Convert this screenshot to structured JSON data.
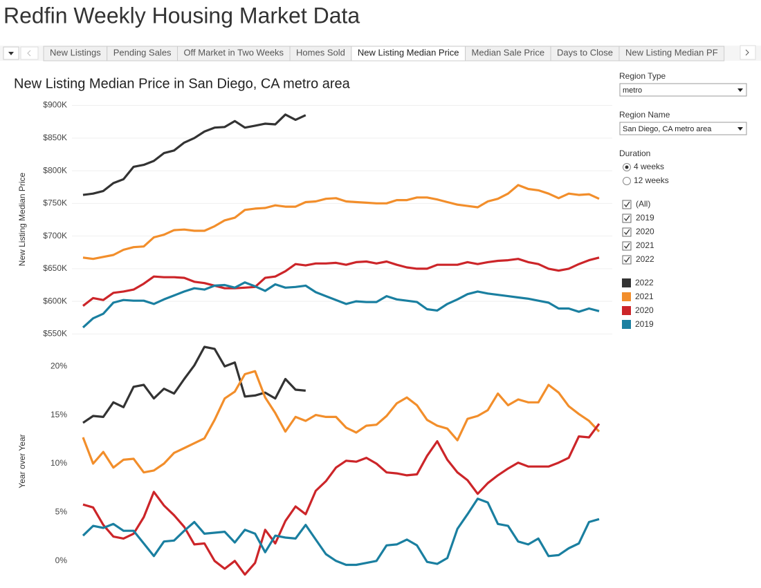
{
  "header": {
    "title": "Redfin Weekly Housing Market Data"
  },
  "tabs": {
    "items": [
      "New Listings",
      "Pending Sales",
      "Off Market in Two Weeks",
      "Homes Sold",
      "New Listing Median Price",
      "Median Sale Price",
      "Days to Close",
      "New Listing Median PF"
    ],
    "selected": 4
  },
  "controls": {
    "region_type": {
      "label": "Region Type",
      "value": "metro"
    },
    "region_name": {
      "label": "Region Name",
      "value": "San Diego, CA metro area"
    },
    "duration": {
      "label": "Duration",
      "options": [
        "4 weeks",
        "12 weeks"
      ],
      "selected": 0
    },
    "years": [
      {
        "label": "(All)",
        "checked": true
      },
      {
        "label": "2019",
        "checked": true
      },
      {
        "label": "2020",
        "checked": true
      },
      {
        "label": "2021",
        "checked": true
      },
      {
        "label": "2022",
        "checked": true
      }
    ]
  },
  "chart_data": [
    {
      "type": "line",
      "title": "New Listing Median Price in San Diego, CA metro area",
      "y_label": "New Listing Median Price",
      "grid": true,
      "categories": [
        null,
        null,
        null,
        null,
        null,
        null,
        null,
        null,
        null,
        null,
        null,
        null,
        null,
        null,
        null,
        null,
        null,
        null,
        null,
        null,
        null,
        null,
        null,
        null,
        null,
        null,
        null,
        null,
        null,
        null,
        null,
        null,
        null,
        null,
        null,
        null,
        null,
        null,
        null,
        null,
        null,
        null,
        null,
        null,
        null,
        null,
        null,
        null,
        null,
        null,
        null,
        null
      ],
      "ylim": [
        543,
        908
      ],
      "yticks": [
        {
          "value": 550,
          "label": "$550K"
        },
        {
          "value": 600,
          "label": "$600K"
        },
        {
          "value": 650,
          "label": "$650K"
        },
        {
          "value": 700,
          "label": "$700K"
        },
        {
          "value": 750,
          "label": "$750K"
        },
        {
          "value": 800,
          "label": "$800K"
        },
        {
          "value": 850,
          "label": "$850K"
        },
        {
          "value": 900,
          "label": "$900K"
        }
      ],
      "series": [
        {
          "name": "2022",
          "color": "#333333",
          "values": [
            763,
            765,
            769,
            781,
            787,
            806,
            809,
            815,
            827,
            831,
            843,
            850,
            860,
            866,
            867,
            876,
            866,
            869,
            872,
            871,
            886,
            878,
            885,
            null,
            null,
            null,
            null,
            null,
            null,
            null,
            null,
            null,
            null,
            null,
            null,
            null,
            null,
            null,
            null,
            null,
            null,
            null,
            null,
            null,
            null,
            null,
            null,
            null,
            null,
            null,
            null,
            null
          ]
        },
        {
          "name": "2021",
          "color": "#f28e2b",
          "values": [
            667,
            665,
            668,
            671,
            679,
            683,
            684,
            698,
            702,
            709,
            710,
            708,
            708,
            715,
            724,
            728,
            740,
            742,
            743,
            747,
            745,
            745,
            752,
            753,
            757,
            758,
            753,
            752,
            751,
            750,
            750,
            755,
            755,
            759,
            759,
            756,
            752,
            748,
            746,
            744,
            753,
            757,
            765,
            778,
            772,
            770,
            765,
            758,
            765,
            763,
            764,
            757
          ]
        },
        {
          "name": "2020",
          "color": "#cc2529",
          "values": [
            593,
            605,
            602,
            613,
            615,
            618,
            627,
            638,
            637,
            637,
            636,
            630,
            628,
            624,
            620,
            620,
            621,
            622,
            636,
            638,
            646,
            657,
            655,
            658,
            658,
            659,
            656,
            660,
            661,
            658,
            661,
            656,
            652,
            650,
            650,
            656,
            656,
            656,
            660,
            657,
            660,
            662,
            663,
            665,
            660,
            657,
            650,
            647,
            650,
            657,
            663,
            667
          ]
        },
        {
          "name": "2019",
          "color": "#1a7fa0",
          "values": [
            560,
            574,
            581,
            598,
            602,
            601,
            601,
            596,
            603,
            609,
            615,
            620,
            618,
            624,
            625,
            621,
            629,
            623,
            616,
            626,
            621,
            622,
            624,
            614,
            608,
            602,
            596,
            600,
            599,
            599,
            608,
            603,
            601,
            599,
            588,
            586,
            596,
            603,
            611,
            615,
            612,
            610,
            608,
            606,
            604,
            601,
            598,
            589,
            589,
            584,
            589,
            585
          ]
        }
      ]
    },
    {
      "type": "line",
      "y_label": "Year over Year",
      "grid": false,
      "categories": [
        null,
        null,
        null,
        null,
        null,
        null,
        null,
        null,
        null,
        null,
        null,
        null,
        null,
        null,
        null,
        null,
        null,
        null,
        null,
        null,
        null,
        null,
        null,
        null,
        null,
        null,
        null,
        null,
        null,
        null,
        null,
        null,
        null,
        null,
        null,
        null,
        null,
        null,
        null,
        null,
        null,
        null,
        null,
        null,
        null,
        null,
        null,
        null,
        null,
        null,
        null,
        null
      ],
      "ylim": [
        -2,
        22.5
      ],
      "yticks": [
        {
          "value": 0,
          "label": "0%"
        },
        {
          "value": 5,
          "label": "5%"
        },
        {
          "value": 10,
          "label": "10%"
        },
        {
          "value": 15,
          "label": "15%"
        },
        {
          "value": 20,
          "label": "20%"
        }
      ],
      "series": [
        {
          "color": "#333333",
          "values": [
            14.2,
            14.9,
            14.8,
            16.3,
            15.8,
            17.9,
            18.1,
            16.7,
            17.7,
            17.2,
            18.7,
            20.1,
            22.0,
            21.8,
            20.0,
            20.4,
            16.9,
            17.0,
            17.3,
            16.7,
            18.7,
            17.6,
            17.5,
            null,
            null,
            null,
            null,
            null,
            null,
            null,
            null,
            null,
            null,
            null,
            null,
            null,
            null,
            null,
            null,
            null,
            null,
            null,
            null,
            null,
            null,
            null,
            null,
            null,
            null,
            null,
            null,
            null
          ]
        },
        {
          "color": "#f28e2b",
          "values": [
            12.7,
            10.0,
            11.2,
            9.6,
            10.4,
            10.5,
            9.1,
            9.3,
            10.0,
            11.1,
            11.6,
            12.1,
            12.6,
            14.5,
            16.7,
            17.4,
            19.2,
            19.5,
            16.8,
            15.2,
            13.3,
            14.8,
            14.4,
            15.0,
            14.8,
            14.8,
            13.7,
            13.2,
            13.9,
            14.0,
            14.9,
            16.2,
            16.8,
            16.0,
            14.5,
            13.9,
            13.6,
            12.4,
            14.6,
            14.9,
            15.5,
            17.2,
            16.0,
            16.6,
            16.3,
            16.3,
            18.1,
            17.3,
            15.9,
            15.1,
            14.4,
            13.3
          ]
        },
        {
          "color": "#cc2529",
          "values": [
            5.8,
            5.5,
            3.7,
            2.5,
            2.3,
            2.8,
            4.5,
            7.1,
            5.7,
            4.7,
            3.5,
            1.7,
            1.8,
            0.0,
            -0.8,
            0.0,
            -1.4,
            -0.2,
            3.2,
            1.8,
            4.1,
            5.6,
            4.8,
            7.2,
            8.2,
            9.6,
            10.3,
            10.2,
            10.6,
            10.0,
            9.1,
            9.0,
            8.8,
            8.9,
            10.8,
            12.3,
            10.4,
            9.1,
            8.3,
            6.9,
            8.0,
            8.8,
            9.5,
            10.1,
            9.7,
            9.7,
            9.7,
            10.1,
            10.6,
            12.8,
            12.7,
            14.1
          ]
        },
        {
          "color": "#1a7fa0",
          "values": [
            2.6,
            3.6,
            3.4,
            3.8,
            3.1,
            3.1,
            1.8,
            0.5,
            2.0,
            2.1,
            3.1,
            4.0,
            2.8,
            2.9,
            3.0,
            1.9,
            3.2,
            2.8,
            0.9,
            2.6,
            2.4,
            2.3,
            3.7,
            2.2,
            0.7,
            0.0,
            -0.4,
            -0.4,
            -0.2,
            0.0,
            1.6,
            1.7,
            2.2,
            1.6,
            -0.1,
            -0.3,
            0.3,
            3.3,
            4.8,
            6.4,
            6.0,
            3.8,
            3.6,
            2.0,
            1.7,
            2.3,
            0.5,
            0.6,
            1.3,
            1.8,
            4.0,
            4.3
          ]
        }
      ]
    }
  ]
}
